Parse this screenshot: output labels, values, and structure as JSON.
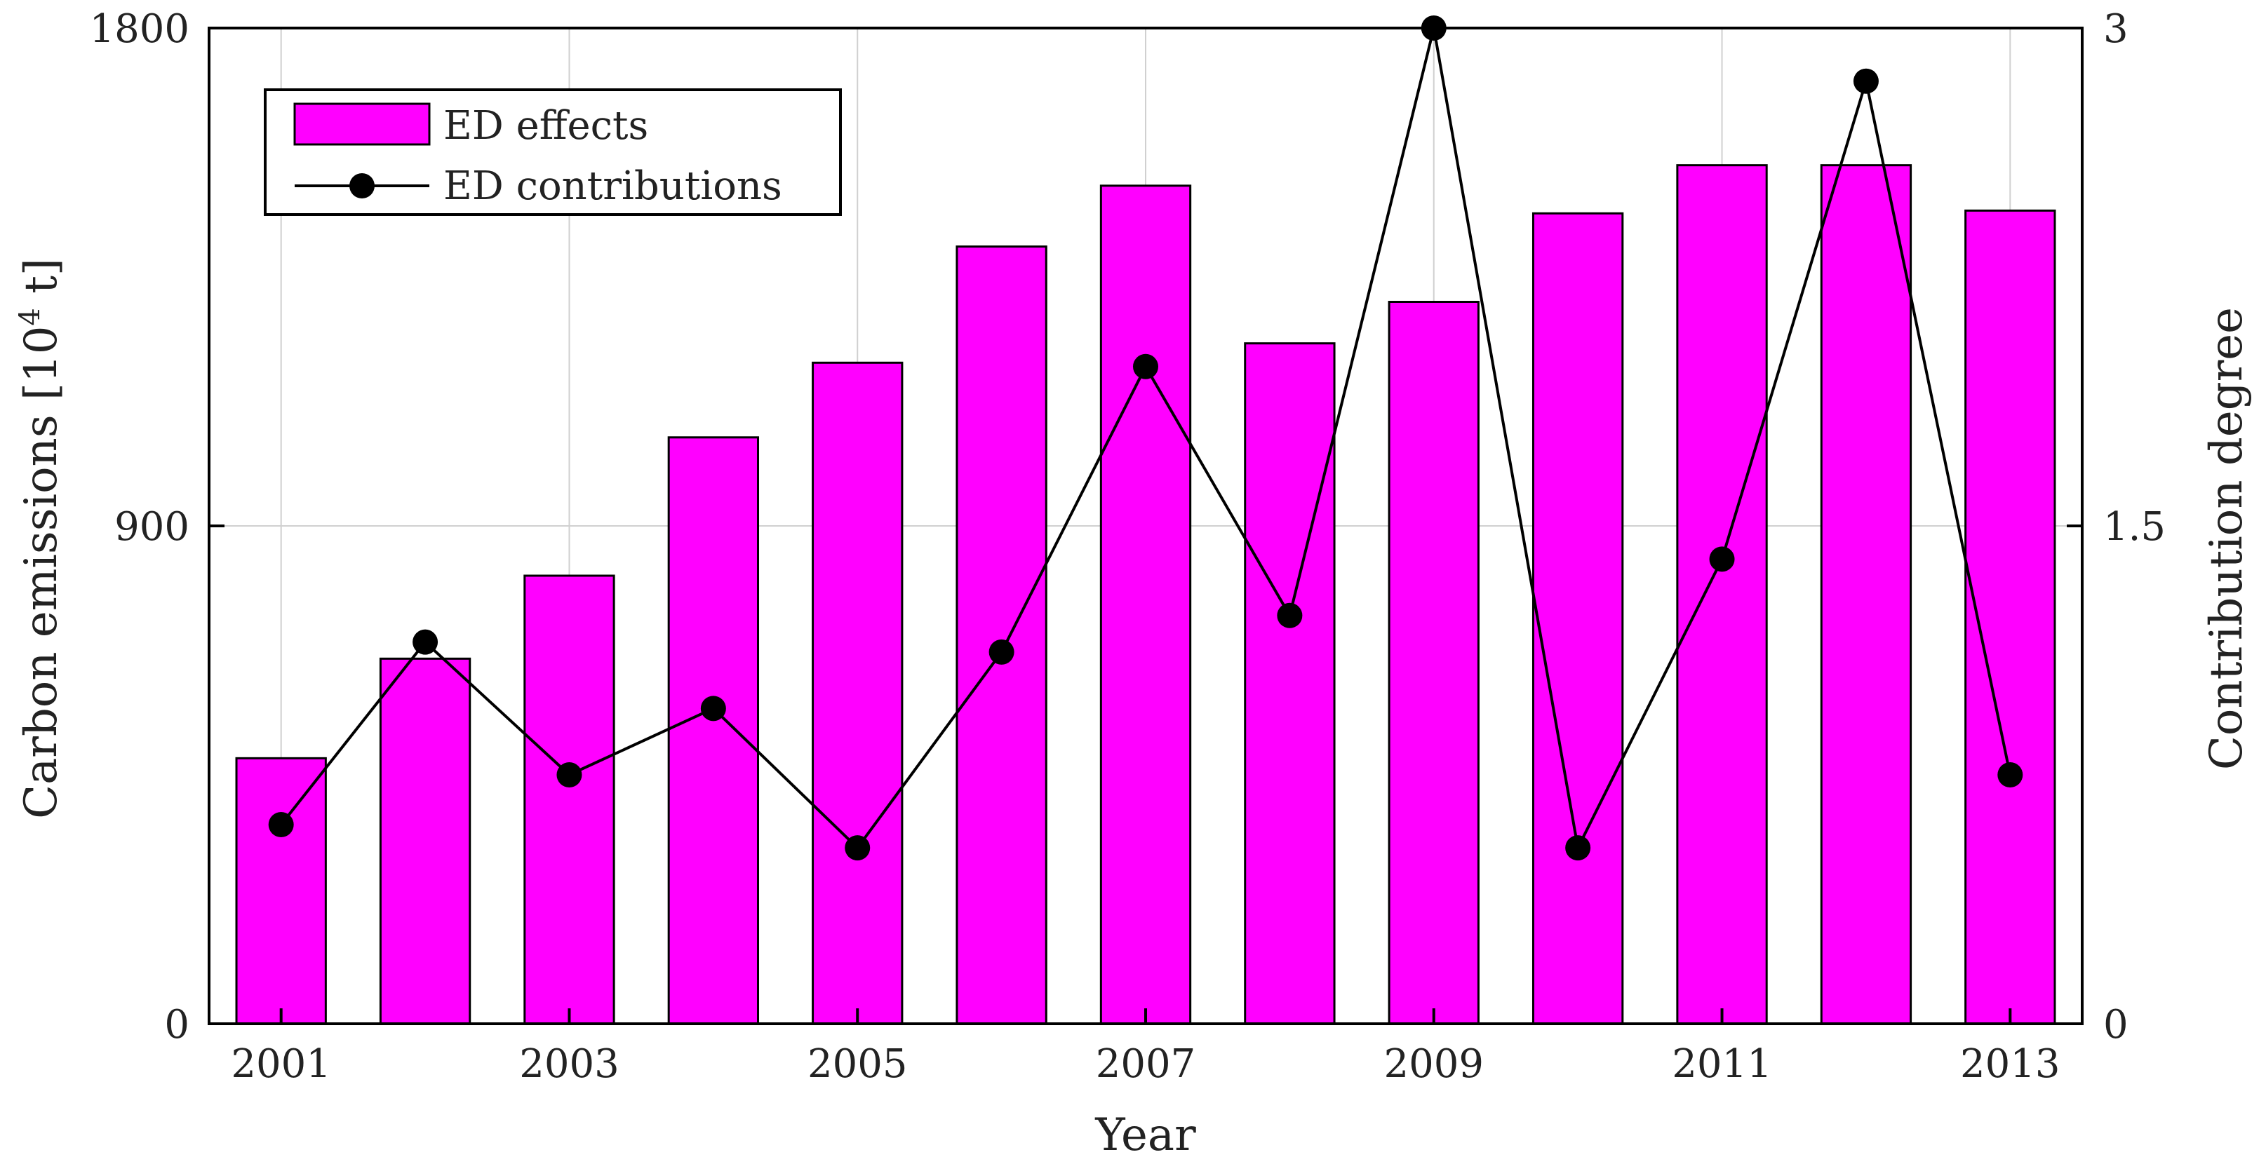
{
  "chart_data": {
    "type": "bar",
    "categories": [
      "2001",
      "2002",
      "2003",
      "2004",
      "2005",
      "2006",
      "2007",
      "2008",
      "2009",
      "2010",
      "2011",
      "2012",
      "2013"
    ],
    "x_tick_labels": [
      "2001",
      "2003",
      "2005",
      "2007",
      "2009",
      "2011",
      "2013"
    ],
    "series": [
      {
        "name": "ED effects",
        "kind": "bar",
        "axis": "left",
        "color": "#FF00FF",
        "values": [
          480,
          660,
          810,
          1060,
          1195,
          1405,
          1515,
          1230,
          1305,
          1465,
          1552,
          1552,
          1470
        ]
      },
      {
        "name": "ED contributions",
        "kind": "line",
        "axis": "right",
        "color": "#000000",
        "values": [
          0.6,
          1.15,
          0.75,
          0.95,
          0.53,
          1.12,
          1.98,
          1.23,
          3.0,
          0.53,
          1.4,
          2.84,
          0.75
        ]
      }
    ],
    "xlabel": "Year",
    "ylabel_left": "Carbon emissions [10",
    "ylabel_left_sup": "4",
    "ylabel_left_unit": " t]",
    "ylabel_right": "Contribution degree",
    "ylim_left": [
      0,
      1800
    ],
    "ylim_right": [
      0,
      3
    ],
    "yticks_left": [
      "0",
      "900",
      "1800"
    ],
    "yticks_right": [
      "0",
      "1.5",
      "3"
    ],
    "yticks_right_values": [
      0,
      1.5,
      3
    ],
    "yticks_left_values": [
      0,
      900,
      1800
    ],
    "grid": true,
    "legend_position": "top-left",
    "legend": [
      "ED effects",
      "ED contributions"
    ]
  }
}
